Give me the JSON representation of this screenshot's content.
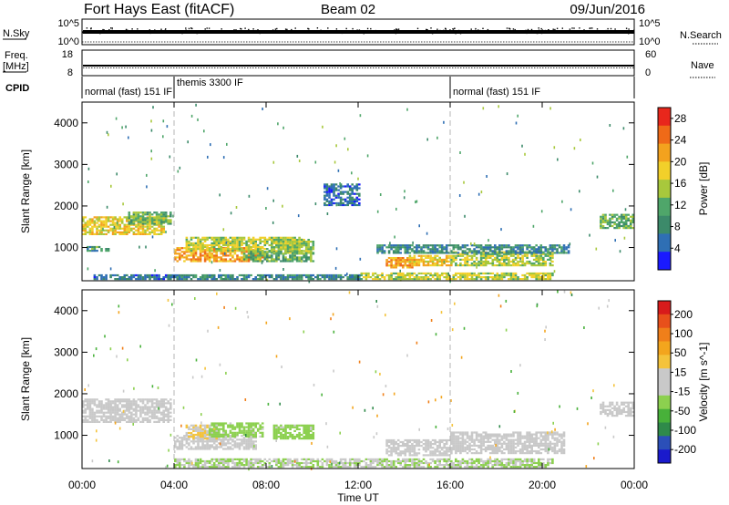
{
  "header": {
    "title": "Fort Hays East (fitACF)",
    "beam": "Beam 02",
    "date": "09/Jun/2016"
  },
  "strips": {
    "nsky_label": "N.Sky",
    "nsky_ticks": [
      "10^5",
      "10^0"
    ],
    "nsearch_label": "N.Search",
    "freq_label_1": "Freq.",
    "freq_label_2": "[MHz]",
    "freq_ticks": [
      "18",
      "8"
    ],
    "nave_label": "Nave",
    "nave_ticks": [
      "60",
      "0"
    ],
    "cpid_label": "CPID",
    "cpid_segments": [
      {
        "label": "normal (fast) 151 IF",
        "start": 0.0,
        "end": 4.0
      },
      {
        "label": "themis 3300 IF",
        "start": 4.0,
        "end": 16.0
      },
      {
        "label": "normal (fast) 151 IF",
        "start": 16.0,
        "end": 24.0
      }
    ]
  },
  "chart_data": [
    {
      "type": "heatmap",
      "name": "power",
      "ylabel": "Slant Range [km]",
      "xlabel": "",
      "xlim": [
        0,
        24
      ],
      "ylim": [
        200,
        4500
      ],
      "y_ticks": [
        "1000",
        "2000",
        "3000",
        "4000"
      ],
      "x_ticks": [
        "00:00",
        "04:00",
        "08:00",
        "12:00",
        "16:00",
        "20:00",
        "00:00"
      ],
      "colorbar": {
        "label": "Power [dB]",
        "range": [
          0,
          30
        ],
        "ticks": [
          "4",
          "8",
          "12",
          "16",
          "20",
          "24",
          "28"
        ],
        "colors": [
          "#1a1aff",
          "#2f6fb4",
          "#3c8a6a",
          "#4fa66a",
          "#a8c83c",
          "#f2d02a",
          "#f3a21e",
          "#ef6a18",
          "#e8271c"
        ]
      },
      "regions": [
        {
          "t0": 0.0,
          "t1": 3.6,
          "r0": 1300,
          "r1": 1750,
          "level": 18
        },
        {
          "t0": 2.0,
          "t1": 3.9,
          "r0": 1550,
          "r1": 1850,
          "level": 12
        },
        {
          "t0": 0.2,
          "t1": 1.2,
          "r0": 900,
          "r1": 1000,
          "level": 10
        },
        {
          "t0": 4.0,
          "t1": 7.8,
          "r0": 650,
          "r1": 1000,
          "level": 22
        },
        {
          "t0": 4.5,
          "t1": 9.5,
          "r0": 900,
          "r1": 1250,
          "level": 16
        },
        {
          "t0": 7.0,
          "t1": 10.0,
          "r0": 650,
          "r1": 900,
          "level": 11
        },
        {
          "t0": 8.2,
          "t1": 10.0,
          "r0": 850,
          "r1": 1200,
          "level": 14
        },
        {
          "t0": 13.2,
          "t1": 14.4,
          "r0": 500,
          "r1": 750,
          "level": 22
        },
        {
          "t0": 14.2,
          "t1": 16.0,
          "r0": 550,
          "r1": 800,
          "level": 19
        },
        {
          "t0": 16.0,
          "t1": 20.5,
          "r0": 550,
          "r1": 900,
          "level": 15
        },
        {
          "t0": 12.8,
          "t1": 21.2,
          "r0": 850,
          "r1": 1050,
          "level": 8
        },
        {
          "t0": 12.0,
          "t1": 20.5,
          "r0": 220,
          "r1": 400,
          "level": 16
        },
        {
          "t0": 4.0,
          "t1": 12.0,
          "r0": 220,
          "r1": 350,
          "level": 8
        },
        {
          "t0": 0.5,
          "t1": 4.0,
          "r0": 220,
          "r1": 330,
          "level": 6
        },
        {
          "t0": 22.5,
          "t1": 24.0,
          "r0": 1450,
          "r1": 1800,
          "level": 12
        },
        {
          "t0": 10.5,
          "t1": 12.0,
          "r0": 2000,
          "r1": 2500,
          "level": 6
        }
      ]
    },
    {
      "type": "heatmap",
      "name": "velocity",
      "ylabel": "Slant Range [km]",
      "xlabel": "Time UT",
      "xlim": [
        0,
        24
      ],
      "ylim": [
        200,
        4500
      ],
      "y_ticks": [
        "1000",
        "2000",
        "3000",
        "4000"
      ],
      "x_ticks": [
        "00:00",
        "04:00",
        "08:00",
        "12:00",
        "16:00",
        "20:00",
        "00:00"
      ],
      "colorbar": {
        "label": "Velocity [m s^-1]",
        "range": [
          -250,
          250
        ],
        "ticks": [
          "200",
          "100",
          "50",
          "15",
          "-15",
          "-50",
          "-100",
          "-200"
        ],
        "colors": [
          "#d81b1b",
          "#e8501b",
          "#f07f1a",
          "#f3a51d",
          "#f4c33b",
          "#c9c9c9",
          "#c9c9c9",
          "#8cd04f",
          "#48b13a",
          "#2f8a4a",
          "#2b4fb8",
          "#1a1acc"
        ]
      },
      "regions": [
        {
          "t0": 0.0,
          "t1": 3.9,
          "r0": 1300,
          "r1": 1850,
          "v": 0
        },
        {
          "t0": 4.0,
          "t1": 7.5,
          "r0": 650,
          "r1": 1000,
          "v": 0
        },
        {
          "t0": 4.5,
          "t1": 5.8,
          "r0": 900,
          "r1": 1250,
          "v": 40
        },
        {
          "t0": 5.5,
          "t1": 7.8,
          "r0": 950,
          "r1": 1300,
          "v": -60
        },
        {
          "t0": 8.3,
          "t1": 10.0,
          "r0": 900,
          "r1": 1250,
          "v": -60
        },
        {
          "t0": 13.2,
          "t1": 16.0,
          "r0": 500,
          "r1": 900,
          "v": 0
        },
        {
          "t0": 16.0,
          "t1": 21.0,
          "r0": 550,
          "r1": 1050,
          "v": 0
        },
        {
          "t0": 4.0,
          "t1": 20.5,
          "r0": 220,
          "r1": 420,
          "v": -40
        },
        {
          "t0": 22.5,
          "t1": 24.0,
          "r0": 1450,
          "r1": 1800,
          "v": 0
        }
      ]
    }
  ]
}
